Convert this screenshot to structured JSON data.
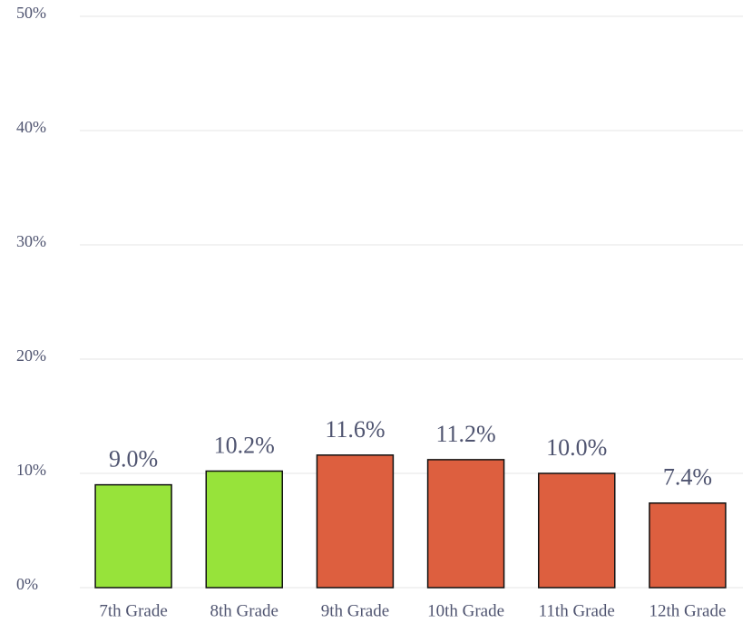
{
  "chart_data": {
    "type": "bar",
    "categories": [
      "7th Grade",
      "8th Grade",
      "9th Grade",
      "10th Grade",
      "11th Grade",
      "12th Grade"
    ],
    "values": [
      9.0,
      10.2,
      11.6,
      11.2,
      10.0,
      7.4
    ],
    "value_labels": [
      "9.0%",
      "10.2%",
      "11.6%",
      "11.2%",
      "10.0%",
      "7.4%"
    ],
    "colors": [
      "#97e33a",
      "#97e33a",
      "#dd5f3f",
      "#dd5f3f",
      "#dd5f3f",
      "#dd5f3f"
    ],
    "ylim": [
      0,
      50
    ],
    "yticks": [
      {
        "value": 0,
        "label": "0%"
      },
      {
        "value": 10,
        "label": "10%"
      },
      {
        "value": 20,
        "label": "20%"
      },
      {
        "value": 30,
        "label": "30%"
      },
      {
        "value": 40,
        "label": "40%"
      },
      {
        "value": 50,
        "label": "50%"
      }
    ],
    "grid": true
  }
}
